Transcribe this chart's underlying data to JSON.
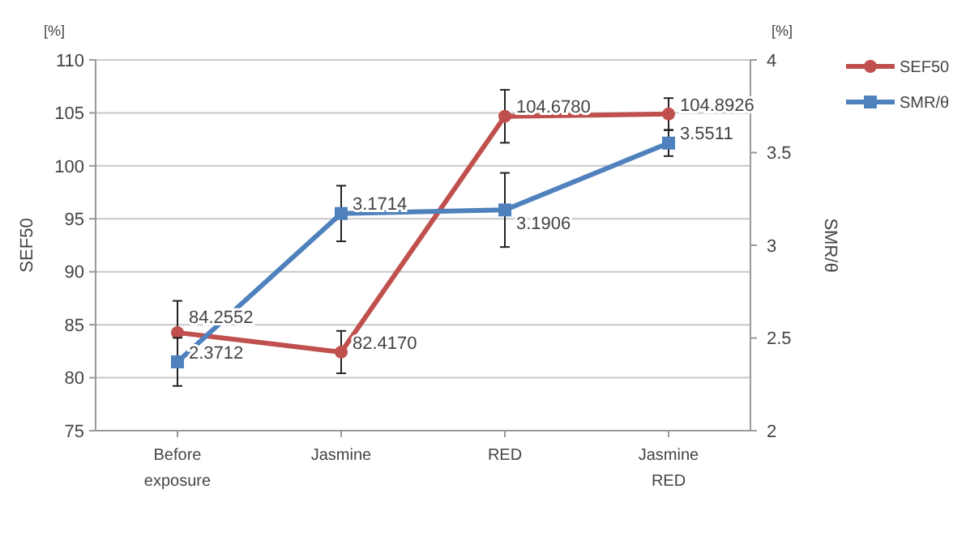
{
  "chart_data": {
    "type": "line",
    "categories": [
      "Before exposure",
      "Jasmine",
      "RED",
      "Jasmine RED"
    ],
    "series": [
      {
        "name": "SEF50",
        "color": "#c0504d",
        "marker": "circle",
        "values": [
          84.2552,
          82.417,
          104.678,
          104.8926
        ],
        "errors": [
          3,
          2,
          2.5,
          1.5
        ],
        "value_labels": [
          "84.2552",
          "82.4170",
          "104.6780",
          "104.8926"
        ]
      },
      {
        "name": "SMR/θ",
        "color": "#4f81bd",
        "marker": "square",
        "axis": "y2",
        "values": [
          2.3712,
          3.1714,
          3.1906,
          3.5511
        ],
        "errors": [
          0.13,
          0.15,
          0.2,
          0.07
        ],
        "value_labels": [
          "2.3712",
          "3.1714",
          "3.1906",
          "3.5511"
        ]
      }
    ],
    "ylabel": "SEF50",
    "y2label": "SMR/θ",
    "ylim": [
      75,
      110
    ],
    "yticks": [
      75,
      80,
      85,
      90,
      95,
      100,
      105,
      110
    ],
    "y2lim": [
      2,
      4
    ],
    "y2ticks": [
      2,
      2.5,
      3,
      3.5,
      4
    ],
    "annotations": [
      "[%]",
      "[%]"
    ],
    "grid": "y",
    "legend": "top right"
  }
}
